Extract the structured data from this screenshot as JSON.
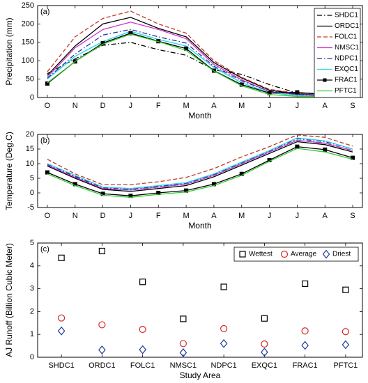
{
  "chart_data": [
    {
      "type": "line",
      "panel_label": "(a)",
      "xlabel": "Month",
      "ylabel": "Precipitation (mm)",
      "ylim": [
        0,
        250
      ],
      "yticks": [
        0,
        50,
        100,
        150,
        200,
        250
      ],
      "legend_position": "top-right",
      "categories": [
        "O",
        "N",
        "D",
        "J",
        "F",
        "M",
        "A",
        "M",
        "J",
        "J",
        "A",
        "S"
      ],
      "series": [
        {
          "name": "SHDC1",
          "color": "#000000",
          "dash": "dashdot",
          "values": [
            65,
            105,
            142,
            150,
            130,
            115,
            75,
            63,
            35,
            12,
            12,
            24
          ]
        },
        {
          "name": "ORDC1",
          "color": "#000000",
          "dash": "solid",
          "values": [
            60,
            140,
            200,
            218,
            188,
            165,
            95,
            53,
            20,
            10,
            6,
            20
          ]
        },
        {
          "name": "FOLC1",
          "color": "#c0392b",
          "dash": "dashed",
          "values": [
            70,
            165,
            215,
            235,
            200,
            175,
            100,
            55,
            22,
            12,
            8,
            22
          ]
        },
        {
          "name": "NMSC1",
          "color": "#cc33cc",
          "dash": "solid",
          "values": [
            55,
            135,
            185,
            205,
            185,
            160,
            90,
            48,
            16,
            8,
            6,
            18
          ]
        },
        {
          "name": "NDPC1",
          "color": "#2233aa",
          "dash": "dashdot",
          "values": [
            52,
            118,
            170,
            185,
            165,
            148,
            85,
            45,
            17,
            8,
            5,
            18
          ]
        },
        {
          "name": "EXQC1",
          "color": "#22d6e6",
          "dash": "solid",
          "values": [
            50,
            112,
            152,
            180,
            158,
            140,
            82,
            40,
            13,
            5,
            3,
            16
          ]
        },
        {
          "name": "FRAC1",
          "color": "#000000",
          "dash": "solid",
          "marker": "square",
          "values": [
            38,
            98,
            148,
            175,
            153,
            133,
            73,
            35,
            12,
            14,
            8,
            18
          ]
        },
        {
          "name": "PFTC1",
          "color": "#33cc33",
          "dash": "solid",
          "values": [
            40,
            98,
            145,
            172,
            152,
            128,
            72,
            32,
            8,
            3,
            3,
            18
          ]
        }
      ]
    },
    {
      "type": "line",
      "panel_label": "(b)",
      "xlabel": "Month",
      "ylabel": "Temperature (Deg.C)",
      "ylim": [
        -5,
        20
      ],
      "yticks": [
        -5,
        0,
        5,
        10,
        15,
        20
      ],
      "categories": [
        "O",
        "N",
        "D",
        "J",
        "F",
        "M",
        "A",
        "M",
        "J",
        "J",
        "A",
        "S"
      ],
      "series": [
        {
          "name": "SHDC1",
          "color": "#000000",
          "dash": "dashdot",
          "values": [
            9.5,
            5.5,
            1.5,
            1,
            2,
            3,
            6,
            10,
            14,
            18,
            17,
            14.5
          ]
        },
        {
          "name": "ORDC1",
          "color": "#000000",
          "dash": "solid",
          "values": [
            9.2,
            5,
            1.2,
            0.5,
            1.5,
            2.5,
            5.5,
            9.5,
            13.5,
            17.5,
            16.5,
            14
          ]
        },
        {
          "name": "FOLC1",
          "color": "#c0392b",
          "dash": "dashed",
          "values": [
            11.5,
            6.5,
            2.8,
            2.8,
            3.8,
            5.3,
            8.3,
            12.3,
            15.8,
            19.8,
            19,
            16
          ]
        },
        {
          "name": "NMSC1",
          "color": "#cc33cc",
          "dash": "solid",
          "values": [
            9.5,
            5.3,
            1.5,
            1,
            2,
            3,
            6,
            10,
            14,
            18,
            17,
            14.5
          ]
        },
        {
          "name": "NDPC1",
          "color": "#2233aa",
          "dash": "dashdot",
          "values": [
            9.8,
            5.8,
            1.8,
            1.3,
            2.3,
            3.3,
            6.3,
            10.3,
            14.3,
            18.5,
            17.5,
            15
          ]
        },
        {
          "name": "EXQC1",
          "color": "#22d6e6",
          "dash": "solid",
          "values": [
            10,
            6,
            2,
            1.5,
            2.5,
            3.5,
            6.5,
            10.5,
            14.5,
            18.8,
            17.8,
            15
          ]
        },
        {
          "name": "FRAC1",
          "color": "#000000",
          "dash": "solid",
          "marker": "square",
          "values": [
            7,
            3,
            -0.3,
            -1,
            0,
            0.8,
            3,
            6.5,
            11.2,
            15.8,
            14.8,
            12
          ]
        },
        {
          "name": "PFTC1",
          "color": "#33cc33",
          "dash": "solid",
          "values": [
            6.5,
            2.5,
            -0.8,
            -1.5,
            -0.5,
            0.3,
            2.5,
            6,
            10.8,
            15.2,
            14,
            11.5
          ]
        }
      ]
    },
    {
      "type": "scatter",
      "panel_label": "(c)",
      "xlabel": "Study Area",
      "ylabel": "AJ Runoff (Billion Cubic Meter)",
      "ylim": [
        0,
        5
      ],
      "yticks": [
        0,
        1,
        2,
        3,
        4,
        5
      ],
      "legend_position": "top-right",
      "categories": [
        "SHDC1",
        "ORDC1",
        "FOLC1",
        "NMSC1",
        "NDPC1",
        "EXQC1",
        "FRAC1",
        "PFTC1"
      ],
      "series": [
        {
          "name": "Wettest",
          "color": "#000000",
          "marker": "square",
          "values": [
            4.35,
            4.65,
            3.3,
            1.68,
            3.08,
            1.7,
            3.22,
            2.95
          ]
        },
        {
          "name": "Average",
          "color": "#d62728",
          "marker": "circle",
          "values": [
            1.72,
            1.42,
            1.22,
            0.6,
            1.25,
            0.58,
            1.15,
            1.12
          ]
        },
        {
          "name": "Driest",
          "color": "#1f3aa0",
          "marker": "diamond",
          "values": [
            1.15,
            0.32,
            0.33,
            0.2,
            0.6,
            0.22,
            0.52,
            0.55
          ]
        }
      ]
    }
  ]
}
